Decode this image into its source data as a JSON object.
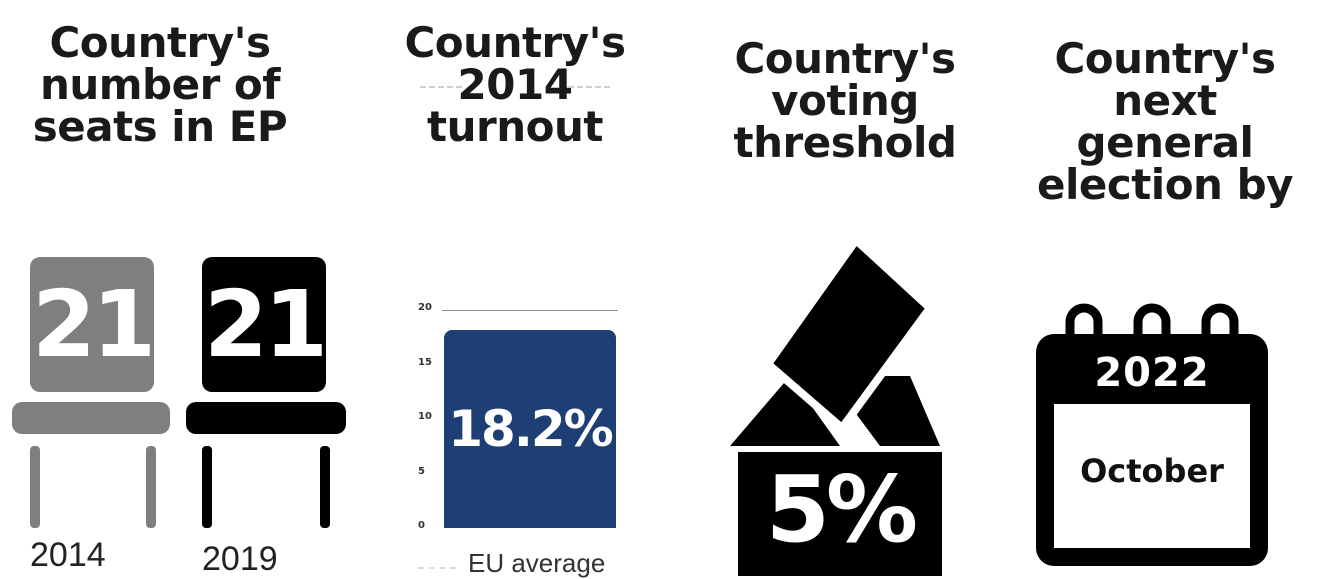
{
  "headings": {
    "seats": [
      "Country's",
      "number of",
      "seats in EP"
    ],
    "turnout": [
      "Country's",
      "2014",
      "turnout"
    ],
    "threshold": [
      "Country's",
      "voting",
      "threshold"
    ],
    "election": [
      "Country's next",
      "general",
      "election by"
    ]
  },
  "seats": {
    "items": [
      {
        "year": "2014",
        "value": "21",
        "color": "#7f7f7f"
      },
      {
        "year": "2019",
        "value": "21",
        "color": "#000000"
      }
    ]
  },
  "turnout": {
    "value_label": "18.2%",
    "eu_label": "EU average",
    "bar_color": "#1d3f73",
    "chart_data": {
      "type": "bar",
      "categories": [
        ""
      ],
      "values": [
        18.2
      ],
      "yticks": [
        "20",
        "15",
        "10",
        "5",
        "0"
      ],
      "ylim": [
        0,
        20
      ]
    }
  },
  "threshold": {
    "value": "5%"
  },
  "election": {
    "year": "2022",
    "month": "October"
  }
}
